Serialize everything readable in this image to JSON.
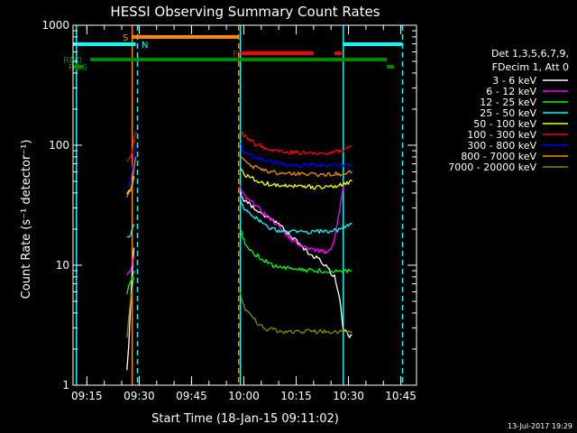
{
  "chart_data": {
    "type": "line",
    "title": "HESSI Observing Summary Count Rates",
    "xlabel": "Start Time (18-Jan-15 09:11:02)",
    "ylabel": "Count Rate (s⁻¹ detector⁻¹)",
    "y_scale": "log",
    "ylim": [
      1,
      1000
    ],
    "xlim": [
      "09:11:02",
      "10:49:30"
    ],
    "x_ticks": [
      "09:15",
      "09:30",
      "09:45",
      "10:00",
      "10:15",
      "10:30",
      "10:45"
    ],
    "y_ticks": [
      "1",
      "10",
      "100",
      "1000"
    ],
    "footer_date": "13-Jul-2017 19:29",
    "legend": {
      "header_line1": "Det 1,3,5,6,7,9,",
      "header_line2": "FDecim 1, Att 0"
    },
    "flag_bars": [
      {
        "label": "S",
        "color": "#ff8800",
        "spans": [
          [
            "09:28:00",
            "09:58:30"
          ]
        ]
      },
      {
        "label": "N",
        "color": "#00ffff",
        "spans": [
          [
            "09:11:02",
            "09:29:00"
          ],
          [
            "10:28:30",
            "10:45:30"
          ]
        ]
      },
      {
        "label": "F",
        "color": "#ff0000",
        "spans": [
          [
            "09:59:00",
            "10:20:00"
          ],
          [
            "10:26:00",
            "10:28:00"
          ]
        ]
      },
      {
        "label": "RD0",
        "color": "#008800",
        "spans": [
          [
            "09:16:00",
            "10:41:00"
          ]
        ]
      },
      {
        "label": "RD6",
        "color": "#008800",
        "spans": [
          [
            "09:11:02",
            "09:14:00"
          ],
          [
            "10:41:00",
            "10:43:00"
          ]
        ]
      }
    ],
    "vertical_lines": [
      {
        "time": "09:12:00",
        "color": "#00ffff",
        "style": "solid"
      },
      {
        "time": "09:28:00",
        "color": "#ff8800",
        "style": "solid"
      },
      {
        "time": "09:29:30",
        "color": "#00ffff",
        "style": "dashed"
      },
      {
        "time": "09:58:30",
        "color": "#ff8800",
        "style": "dashed"
      },
      {
        "time": "09:59:00",
        "color": "#00ffff",
        "style": "solid"
      },
      {
        "time": "10:28:30",
        "color": "#00ffff",
        "style": "solid"
      },
      {
        "time": "10:45:30",
        "color": "#00ffff",
        "style": "dashed"
      }
    ],
    "series": [
      {
        "name": "3 - 6 keV",
        "color": "#ffffff",
        "segments": [
          {
            "t": [
              "09:26:30",
              "09:27:00",
              "09:27:30",
              "09:28:00",
              "09:28:30"
            ],
            "v": [
              1.3,
              2.2,
              4.5,
              9.0,
              14
            ]
          },
          {
            "t": [
              "09:59:00",
              "10:00:00",
              "10:03:00",
              "10:06:00",
              "10:10:00",
              "10:14:00",
              "10:18:00",
              "10:22:00",
              "10:26:00",
              "10:27:30",
              "10:28:30",
              "10:30:00",
              "10:31:00"
            ],
            "v": [
              40,
              35,
              30,
              26,
              22,
              17,
              13,
              11,
              8,
              5,
              3,
              2.6,
              2.6
            ]
          }
        ]
      },
      {
        "name": "6 - 12 keV",
        "color": "#ff00ff",
        "segments": [
          {
            "t": [
              "09:26:30",
              "09:27:00",
              "09:27:30",
              "09:28:00",
              "09:28:30"
            ],
            "v": [
              8,
              8.5,
              9,
              10,
              12
            ]
          },
          {
            "t": [
              "09:59:00",
              "10:00:00",
              "10:03:00",
              "10:06:00",
              "10:10:00",
              "10:14:00",
              "10:18:00",
              "10:22:00",
              "10:25:00",
              "10:26:30",
              "10:27:30",
              "10:28:30"
            ],
            "v": [
              45,
              38,
              32,
              27,
              21,
              16,
              14,
              13,
              13,
              20,
              30,
              45
            ]
          }
        ]
      },
      {
        "name": "12 - 25 keV",
        "color": "#00ff00",
        "segments": [
          {
            "t": [
              "09:26:30",
              "09:27:00",
              "09:27:30",
              "09:28:00",
              "09:28:30"
            ],
            "v": [
              6,
              6.5,
              7,
              7.5,
              9
            ]
          },
          {
            "t": [
              "09:59:00",
              "10:00:00",
              "10:02:00",
              "10:04:00",
              "10:06:00",
              "10:08:00",
              "10:12:00",
              "10:18:00",
              "10:22:00",
              "10:26:00",
              "10:28:30",
              "10:30:00",
              "10:31:00"
            ],
            "v": [
              20,
              16,
              13,
              12,
              11,
              10,
              9.5,
              9,
              9,
              9,
              9,
              9,
              9
            ]
          }
        ]
      },
      {
        "name": "25 - 50 keV",
        "color": "#00ffff",
        "segments": [
          {
            "t": [
              "09:26:30",
              "09:27:00",
              "09:27:30",
              "09:28:00",
              "09:28:30"
            ],
            "v": [
              17,
              17.5,
              18,
              20,
              22
            ]
          },
          {
            "t": [
              "09:59:00",
              "10:00:00",
              "10:02:00",
              "10:04:00",
              "10:06:00",
              "10:08:00",
              "10:12:00",
              "10:18:00",
              "10:24:00",
              "10:28:00",
              "10:29:00",
              "10:30:00",
              "10:31:00"
            ],
            "v": [
              35,
              30,
              27,
              24,
              22,
              20,
              19,
              19,
              19,
              20,
              21,
              22,
              22
            ]
          }
        ]
      },
      {
        "name": "50 - 100 keV",
        "color": "#ffff00",
        "segments": [
          {
            "t": [
              "09:26:30",
              "09:27:00",
              "09:27:30",
              "09:28:00",
              "09:28:30"
            ],
            "v": [
              40,
              42,
              44,
              48,
              55
            ]
          },
          {
            "t": [
              "09:59:00",
              "10:00:00",
              "10:03:00",
              "10:06:00",
              "10:10:00",
              "10:15:00",
              "10:20:00",
              "10:25:00",
              "10:28:00",
              "10:30:00",
              "10:31:00"
            ],
            "v": [
              65,
              58,
              52,
              48,
              46,
              45,
              45,
              45,
              47,
              49,
              50
            ]
          }
        ]
      },
      {
        "name": "100 - 300 keV",
        "color": "#ff0000",
        "segments": [
          {
            "t": [
              "09:26:30",
              "09:27:00",
              "09:27:30",
              "09:28:00",
              "09:28:30",
              "09:29:00"
            ],
            "v": [
              75,
              78,
              80,
              90,
              110,
              130
            ]
          },
          {
            "t": [
              "09:59:00",
              "10:00:00",
              "10:02:00",
              "10:05:00",
              "10:08:00",
              "10:12:00",
              "10:16:00",
              "10:20:00",
              "10:24:00",
              "10:28:00",
              "10:30:00",
              "10:31:00"
            ],
            "v": [
              135,
              120,
              108,
              98,
              92,
              88,
              86,
              86,
              86,
              90,
              96,
              98
            ]
          }
        ]
      },
      {
        "name": "300 - 800 keV",
        "color": "#0000ff",
        "segments": [
          {
            "t": [
              "09:26:30",
              "09:27:00",
              "09:27:30",
              "09:28:00",
              "09:28:30",
              "09:29:00"
            ],
            "v": [
              45,
              47,
              50,
              60,
              80,
              100
            ]
          },
          {
            "t": [
              "09:59:00",
              "10:00:00",
              "10:02:00",
              "10:05:00",
              "10:08:00",
              "10:12:00",
              "10:16:00",
              "10:20:00",
              "10:24:00",
              "10:28:00",
              "10:30:00",
              "10:31:00"
            ],
            "v": [
              100,
              90,
              82,
              76,
              72,
              69,
              68,
              68,
              68,
              69,
              70,
              70
            ]
          }
        ]
      },
      {
        "name": "800 - 7000 keV",
        "color": "#ff8800",
        "segments": [
          {
            "t": [
              "09:26:30",
              "09:27:00",
              "09:27:30",
              "09:28:00",
              "09:28:30",
              "09:29:00"
            ],
            "v": [
              38,
              40,
              42,
              50,
              65,
              80
            ]
          },
          {
            "t": [
              "09:59:00",
              "10:00:00",
              "10:02:00",
              "10:05:00",
              "10:08:00",
              "10:12:00",
              "10:16:00",
              "10:20:00",
              "10:24:00",
              "10:28:00",
              "10:30:00",
              "10:31:00"
            ],
            "v": [
              85,
              75,
              68,
              63,
              60,
              58,
              57,
              57,
              57,
              58,
              60,
              60
            ]
          }
        ]
      },
      {
        "name": "7000 - 20000 keV",
        "color": "#888800",
        "segments": [
          {
            "t": [
              "09:26:30",
              "09:27:00",
              "09:27:30",
              "09:28:00",
              "09:28:30"
            ],
            "v": [
              2.5,
              3.5,
              5,
              6.5,
              8
            ]
          },
          {
            "t": [
              "09:59:00",
              "10:00:00",
              "10:02:00",
              "10:04:00",
              "10:06:00",
              "10:10:00",
              "10:15:00",
              "10:20:00",
              "10:25:00",
              "10:28:00",
              "10:30:00",
              "10:31:00"
            ],
            "v": [
              6,
              4.5,
              3.8,
              3.3,
              3.0,
              2.8,
              2.8,
              2.8,
              2.8,
              2.8,
              2.8,
              2.8
            ]
          }
        ]
      }
    ]
  }
}
